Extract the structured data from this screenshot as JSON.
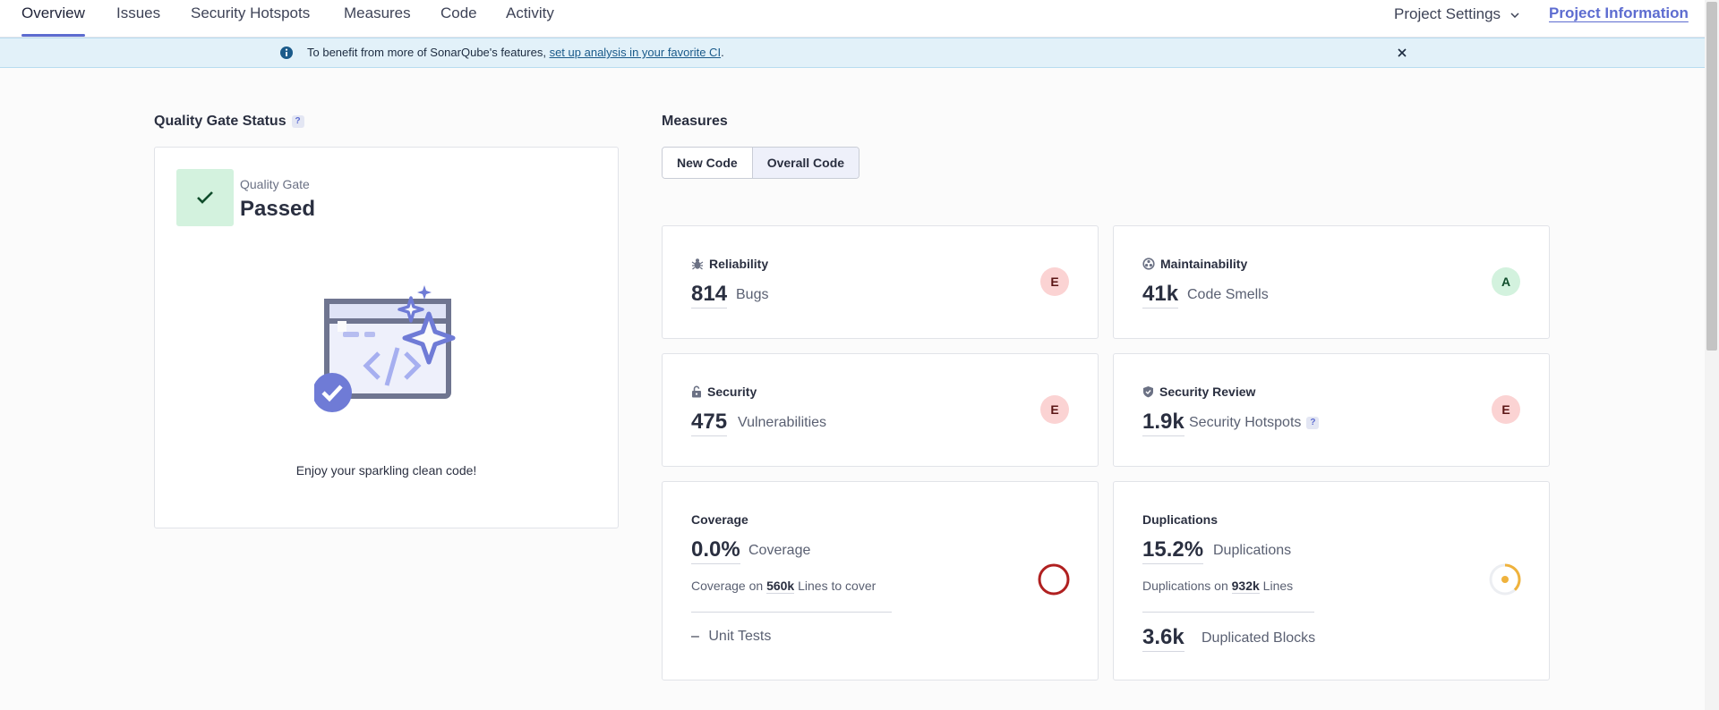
{
  "nav": {
    "tabs": [
      "Overview",
      "Issues",
      "Security Hotspots",
      "Measures",
      "Code",
      "Activity"
    ],
    "settings_label": "Project Settings",
    "info_label": "Project Information"
  },
  "banner": {
    "text_before": "To benefit from more of SonarQube's features,",
    "link_text": "set up analysis in your favorite CI",
    "text_after": "."
  },
  "quality_gate": {
    "section_title": "Quality Gate Status",
    "help": "?",
    "label": "Quality Gate",
    "status": "Passed",
    "caption": "Enjoy your sparkling clean code!"
  },
  "measures": {
    "section_title": "Measures",
    "toggle": [
      "New Code",
      "Overall Code"
    ],
    "reliability": {
      "title": "Reliability",
      "value": "814",
      "unit": "Bugs",
      "rating": "E"
    },
    "maintainability": {
      "title": "Maintainability",
      "value": "41k",
      "unit": "Code Smells",
      "rating": "A"
    },
    "security": {
      "title": "Security",
      "value": "475",
      "unit": "Vulnerabilities",
      "rating": "E"
    },
    "security_review": {
      "title": "Security Review",
      "value": "1.9k",
      "unit": "Security Hotspots",
      "help": "?",
      "rating": "E"
    },
    "coverage": {
      "title": "Coverage",
      "value": "0.0%",
      "unit": "Coverage",
      "sub_prefix": "Coverage on",
      "sub_value": "560k",
      "sub_suffix": "Lines to cover",
      "tests_dash": "–",
      "tests_label": "Unit Tests",
      "percent": 0.0
    },
    "duplications": {
      "title": "Duplications",
      "value": "15.2%",
      "unit": "Duplications",
      "sub_prefix": "Duplications on",
      "sub_value": "932k",
      "sub_suffix": "Lines",
      "blocks_value": "3.6k",
      "blocks_label": "Duplicated Blocks",
      "percent": 15.2
    }
  },
  "colors": {
    "accent": "#5d6cd0",
    "rating_e_bg": "#fbd3d3",
    "rating_a_bg": "#d3f2de",
    "coverage_ring": "#b02020",
    "duplication_ring": "#efb23c"
  }
}
